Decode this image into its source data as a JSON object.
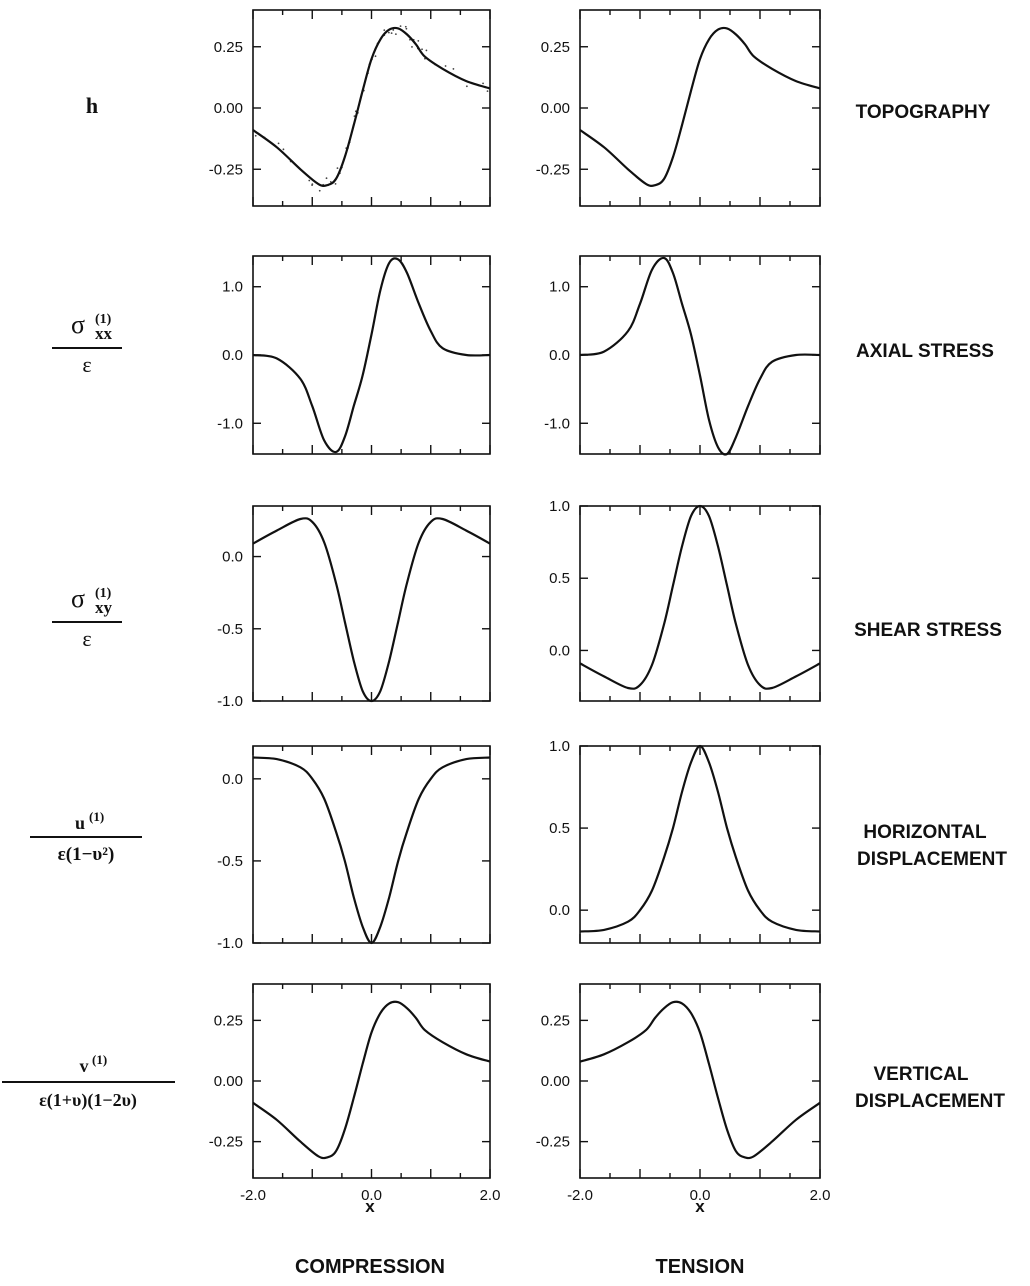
{
  "figure": {
    "columns": [
      "COMPRESSION",
      "TENSION"
    ],
    "x_axis_label": "x"
  },
  "rows": [
    {
      "quantity": "h",
      "label_lines": [
        "TOPOGRAPHY"
      ]
    },
    {
      "quantity": "σ(1)xx / ε",
      "label_lines": [
        "AXIAL STRESS"
      ]
    },
    {
      "quantity": "σ(1)xy / ε",
      "label_lines": [
        "SHEAR STRESS"
      ]
    },
    {
      "quantity": "u(1) / ε(1−υ²)",
      "label_lines": [
        "HORIZONTAL",
        "DISPLACEMENT"
      ]
    },
    {
      "quantity": "v(1) / ε(1+υ)(1−2υ)",
      "label_lines": [
        "VERTICAL",
        "DISPLACEMENT"
      ]
    }
  ],
  "chart_data": [
    {
      "type": "line",
      "row": "TOPOGRAPHY",
      "column": "COMPRESSION",
      "xlim": [
        -2.0,
        2.0
      ],
      "ylim": [
        -0.4,
        0.4
      ],
      "yticks": [
        -0.25,
        0.0,
        0.25
      ],
      "ytick_labels": [
        "-0.25",
        "0.00",
        "0.25"
      ],
      "series": [
        {
          "x": [
            -2.0,
            -1.6,
            -1.2,
            -0.9,
            -0.75,
            -0.6,
            -0.45,
            -0.3,
            -0.15,
            0.0,
            0.15,
            0.3,
            0.45,
            0.6,
            0.75,
            0.9,
            1.2,
            1.6,
            2.0
          ],
          "y": [
            -0.09,
            -0.16,
            -0.25,
            -0.31,
            -0.315,
            -0.29,
            -0.2,
            -0.07,
            0.07,
            0.2,
            0.28,
            0.32,
            0.325,
            0.3,
            0.26,
            0.21,
            0.16,
            0.11,
            0.08
          ]
        }
      ],
      "scatter_note": "scattered experimental points around curve"
    },
    {
      "type": "line",
      "row": "TOPOGRAPHY",
      "column": "TENSION",
      "xlim": [
        -2.0,
        2.0
      ],
      "ylim": [
        -0.4,
        0.4
      ],
      "yticks": [
        -0.25,
        0.0,
        0.25
      ],
      "ytick_labels": [
        "-0.25",
        "0.00",
        "0.25"
      ],
      "series": [
        {
          "x": [
            -2.0,
            -1.6,
            -1.2,
            -0.9,
            -0.75,
            -0.6,
            -0.45,
            -0.3,
            -0.15,
            0.0,
            0.15,
            0.3,
            0.45,
            0.6,
            0.75,
            0.9,
            1.2,
            1.6,
            2.0
          ],
          "y": [
            -0.09,
            -0.16,
            -0.25,
            -0.31,
            -0.315,
            -0.29,
            -0.2,
            -0.07,
            0.07,
            0.2,
            0.28,
            0.32,
            0.325,
            0.3,
            0.26,
            0.21,
            0.16,
            0.11,
            0.08
          ]
        }
      ]
    },
    {
      "type": "line",
      "row": "AXIAL STRESS",
      "column": "COMPRESSION",
      "xlim": [
        -2.0,
        2.0
      ],
      "ylim": [
        -1.45,
        1.45
      ],
      "yticks": [
        -1.0,
        0.0,
        1.0
      ],
      "ytick_labels": [
        "-1.0",
        "0.0",
        "1.0"
      ],
      "series": [
        {
          "x": [
            -2.0,
            -1.6,
            -1.2,
            -1.0,
            -0.8,
            -0.6,
            -0.45,
            -0.3,
            -0.15,
            0.0,
            0.15,
            0.3,
            0.45,
            0.6,
            0.8,
            1.0,
            1.2,
            1.6,
            2.0
          ],
          "y": [
            0.0,
            -0.05,
            -0.35,
            -0.75,
            -1.25,
            -1.42,
            -1.2,
            -0.75,
            -0.3,
            0.3,
            0.95,
            1.35,
            1.4,
            1.2,
            0.75,
            0.35,
            0.1,
            0.0,
            0.0
          ]
        }
      ]
    },
    {
      "type": "line",
      "row": "AXIAL STRESS",
      "column": "TENSION",
      "xlim": [
        -2.0,
        2.0
      ],
      "ylim": [
        -1.45,
        1.45
      ],
      "yticks": [
        -1.0,
        0.0,
        1.0
      ],
      "ytick_labels": [
        "-1.0",
        "0.0",
        "1.0"
      ],
      "series": [
        {
          "x": [
            -2.0,
            -1.6,
            -1.2,
            -1.0,
            -0.8,
            -0.6,
            -0.45,
            -0.3,
            -0.15,
            0.0,
            0.15,
            0.3,
            0.45,
            0.6,
            0.8,
            1.0,
            1.2,
            1.6,
            2.0
          ],
          "y": [
            0.0,
            0.05,
            0.35,
            0.75,
            1.25,
            1.42,
            1.2,
            0.75,
            0.3,
            -0.3,
            -0.95,
            -1.35,
            -1.45,
            -1.2,
            -0.75,
            -0.35,
            -0.1,
            0.0,
            0.0
          ]
        }
      ]
    },
    {
      "type": "line",
      "row": "SHEAR STRESS",
      "column": "COMPRESSION",
      "xlim": [
        -2.0,
        2.0
      ],
      "ylim": [
        -1.0,
        0.35
      ],
      "yticks": [
        -1.0,
        -0.5,
        0.0
      ],
      "ytick_labels": [
        "-1.0",
        "-0.5",
        "0.0"
      ],
      "series": [
        {
          "x": [
            -2.0,
            -1.6,
            -1.2,
            -1.0,
            -0.8,
            -0.6,
            -0.45,
            -0.3,
            -0.15,
            0.0,
            0.15,
            0.3,
            0.45,
            0.6,
            0.8,
            1.0,
            1.2,
            1.6,
            2.0
          ],
          "y": [
            0.09,
            0.18,
            0.26,
            0.24,
            0.1,
            -0.18,
            -0.45,
            -0.72,
            -0.93,
            -1.0,
            -0.93,
            -0.72,
            -0.45,
            -0.18,
            0.1,
            0.24,
            0.26,
            0.18,
            0.09
          ]
        }
      ]
    },
    {
      "type": "line",
      "row": "SHEAR STRESS",
      "column": "TENSION",
      "xlim": [
        -2.0,
        2.0
      ],
      "ylim": [
        -0.35,
        1.0
      ],
      "yticks": [
        0.0,
        0.5,
        1.0
      ],
      "ytick_labels": [
        "0.0",
        "0.5",
        "1.0"
      ],
      "series": [
        {
          "x": [
            -2.0,
            -1.6,
            -1.2,
            -1.0,
            -0.8,
            -0.6,
            -0.45,
            -0.3,
            -0.15,
            0.0,
            0.15,
            0.3,
            0.45,
            0.6,
            0.8,
            1.0,
            1.2,
            1.6,
            2.0
          ],
          "y": [
            -0.09,
            -0.18,
            -0.26,
            -0.24,
            -0.1,
            0.18,
            0.45,
            0.72,
            0.93,
            1.0,
            0.93,
            0.72,
            0.45,
            0.18,
            -0.1,
            -0.24,
            -0.26,
            -0.18,
            -0.09
          ]
        }
      ]
    },
    {
      "type": "line",
      "row": "HORIZONTAL DISPLACEMENT",
      "column": "COMPRESSION",
      "xlim": [
        -2.0,
        2.0
      ],
      "ylim": [
        -1.0,
        0.2
      ],
      "yticks": [
        -1.0,
        -0.5,
        0.0
      ],
      "ytick_labels": [
        "-1.0",
        "-0.5",
        "0.0"
      ],
      "series": [
        {
          "x": [
            -2.0,
            -1.6,
            -1.2,
            -1.0,
            -0.8,
            -0.6,
            -0.45,
            -0.3,
            -0.15,
            0.0,
            0.15,
            0.3,
            0.45,
            0.6,
            0.8,
            1.0,
            1.2,
            1.6,
            2.0
          ],
          "y": [
            0.13,
            0.12,
            0.07,
            0.0,
            -0.12,
            -0.32,
            -0.5,
            -0.72,
            -0.9,
            -1.0,
            -0.9,
            -0.72,
            -0.5,
            -0.32,
            -0.12,
            0.0,
            0.07,
            0.12,
            0.13
          ]
        }
      ]
    },
    {
      "type": "line",
      "row": "HORIZONTAL DISPLACEMENT",
      "column": "TENSION",
      "xlim": [
        -2.0,
        2.0
      ],
      "ylim": [
        -0.2,
        1.0
      ],
      "yticks": [
        0.0,
        0.5,
        1.0
      ],
      "ytick_labels": [
        "0.0",
        "0.5",
        "1.0"
      ],
      "series": [
        {
          "x": [
            -2.0,
            -1.6,
            -1.2,
            -1.0,
            -0.8,
            -0.6,
            -0.45,
            -0.3,
            -0.15,
            0.0,
            0.15,
            0.3,
            0.45,
            0.6,
            0.8,
            1.0,
            1.2,
            1.6,
            2.0
          ],
          "y": [
            -0.13,
            -0.12,
            -0.07,
            0.0,
            0.12,
            0.32,
            0.5,
            0.72,
            0.9,
            1.0,
            0.9,
            0.72,
            0.5,
            0.32,
            0.12,
            0.0,
            -0.07,
            -0.12,
            -0.13
          ]
        }
      ]
    },
    {
      "type": "line",
      "row": "VERTICAL DISPLACEMENT",
      "column": "COMPRESSION",
      "xlim": [
        -2.0,
        2.0
      ],
      "ylim": [
        -0.4,
        0.4
      ],
      "yticks": [
        -0.25,
        0.0,
        0.25
      ],
      "ytick_labels": [
        "-0.25",
        "0.00",
        "0.25"
      ],
      "xticks": [
        -2.0,
        -1.0,
        0.0,
        1.0,
        2.0
      ],
      "xtick_labels": [
        "-2.0",
        "",
        "0.0",
        "",
        "2.0"
      ],
      "series": [
        {
          "x": [
            -2.0,
            -1.6,
            -1.2,
            -0.9,
            -0.75,
            -0.6,
            -0.45,
            -0.3,
            -0.15,
            0.0,
            0.15,
            0.3,
            0.45,
            0.6,
            0.75,
            0.9,
            1.2,
            1.6,
            2.0
          ],
          "y": [
            -0.09,
            -0.16,
            -0.25,
            -0.31,
            -0.315,
            -0.29,
            -0.2,
            -0.07,
            0.07,
            0.2,
            0.28,
            0.32,
            0.325,
            0.3,
            0.26,
            0.21,
            0.16,
            0.11,
            0.08
          ]
        }
      ]
    },
    {
      "type": "line",
      "row": "VERTICAL DISPLACEMENT",
      "column": "TENSION",
      "xlim": [
        -2.0,
        2.0
      ],
      "ylim": [
        -0.4,
        0.4
      ],
      "yticks": [
        -0.25,
        0.0,
        0.25
      ],
      "ytick_labels": [
        "-0.25",
        "0.00",
        "0.25"
      ],
      "xticks": [
        -2.0,
        -1.0,
        0.0,
        1.0,
        2.0
      ],
      "xtick_labels": [
        "-2.0",
        "",
        "0.0",
        "",
        "2.0"
      ],
      "series": [
        {
          "x": [
            -2.0,
            -1.6,
            -1.2,
            -0.9,
            -0.75,
            -0.6,
            -0.45,
            -0.3,
            -0.15,
            0.0,
            0.15,
            0.3,
            0.45,
            0.6,
            0.75,
            0.9,
            1.2,
            1.6,
            2.0
          ],
          "y": [
            0.08,
            0.11,
            0.16,
            0.21,
            0.26,
            0.3,
            0.325,
            0.32,
            0.28,
            0.2,
            0.07,
            -0.07,
            -0.2,
            -0.29,
            -0.315,
            -0.31,
            -0.25,
            -0.16,
            -0.09
          ]
        }
      ]
    }
  ]
}
